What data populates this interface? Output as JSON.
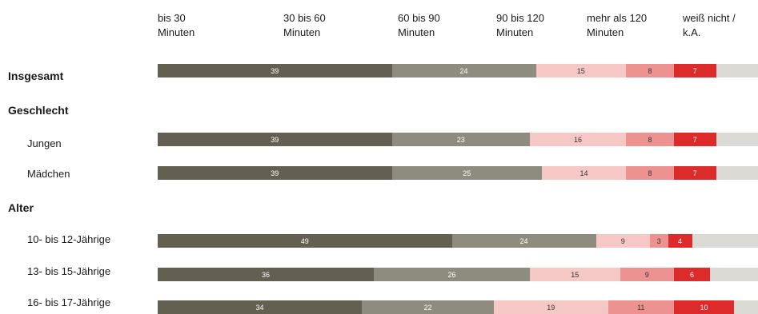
{
  "chart_data": {
    "type": "bar",
    "orientation": "horizontal",
    "stacked": true,
    "percent": true,
    "title": "",
    "legend_position": "top",
    "series": [
      {
        "name": "bis 30\nMinuten",
        "color": "#636052"
      },
      {
        "name": "30 bis 60\nMinuten",
        "color": "#8e8b7f"
      },
      {
        "name": "60 bis 90\nMinuten",
        "color": "#f5c7c5"
      },
      {
        "name": "90 bis 120\nMinuten",
        "color": "#ec9290"
      },
      {
        "name": "mehr als 120\nMinuten",
        "color": "#dd2b2b"
      },
      {
        "name": "weiß nicht /\nk.A.",
        "color": "#dcdad5"
      }
    ],
    "rows": [
      {
        "label": "Insgesamt",
        "kind": "group",
        "values": [
          39,
          24,
          15,
          8,
          7,
          7
        ]
      },
      {
        "label": "Geschlecht",
        "kind": "group"
      },
      {
        "label": "Jungen",
        "kind": "item",
        "values": [
          39,
          23,
          16,
          8,
          7,
          7
        ]
      },
      {
        "label": "Mädchen",
        "kind": "item",
        "values": [
          39,
          25,
          14,
          8,
          7,
          7
        ]
      },
      {
        "label": "Alter",
        "kind": "group"
      },
      {
        "label": "10- bis 12-Jährige",
        "kind": "item",
        "values": [
          49,
          24,
          9,
          3,
          4,
          11
        ]
      },
      {
        "label": "13- bis 15-Jährige",
        "kind": "item",
        "values": [
          36,
          26,
          15,
          9,
          6,
          8
        ]
      },
      {
        "label": "16- bis 17-Jährige",
        "kind": "item",
        "values": [
          34,
          22,
          19,
          11,
          10,
          4
        ]
      }
    ],
    "value_labels_hidden_for_last_series": true
  }
}
